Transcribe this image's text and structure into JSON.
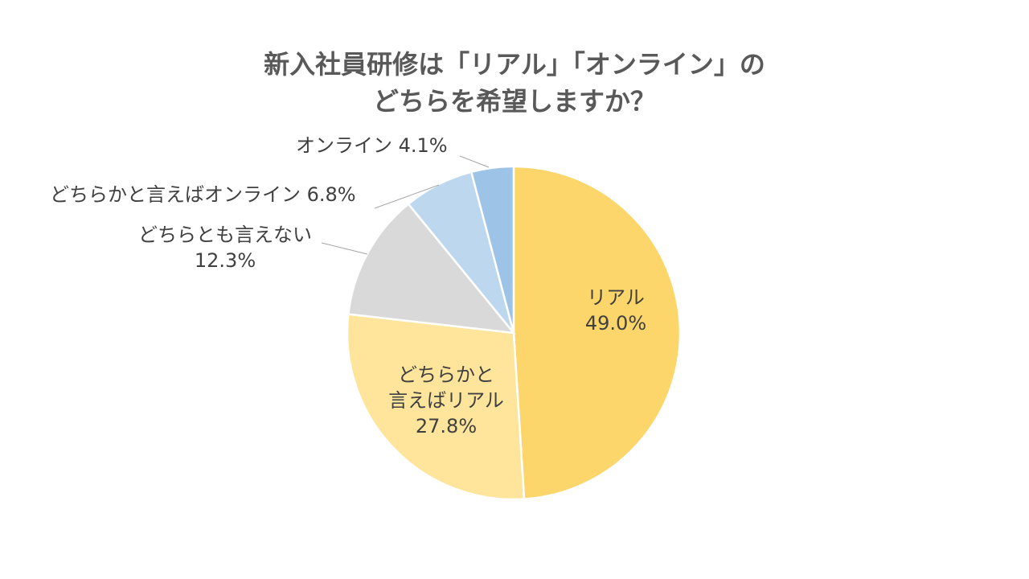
{
  "chart_data": {
    "type": "pie",
    "title_lines": [
      "新入社員研修は「リアル」「オンライン」の",
      "どちらを希望しますか？"
    ],
    "start": "top",
    "direction": "clockwise",
    "slices": [
      {
        "label": "リアル",
        "value": 49.0,
        "value_label": "49.0%",
        "color": "#FCD66A"
      },
      {
        "label": "どちらかと言えばリアル",
        "label_lines": [
          "どちらかと",
          "言えばリアル"
        ],
        "value": 27.8,
        "value_label": "27.8%",
        "color": "#FEE59B"
      },
      {
        "label": "どちらとも言えない",
        "value": 12.3,
        "value_label": "12.3%",
        "color": "#D9D9D9"
      },
      {
        "label": "どちらかと言えばオンライン",
        "value": 6.8,
        "value_label": "6.8%",
        "color": "#BDD7EE"
      },
      {
        "label": "オンライン",
        "value": 4.1,
        "value_label": "4.1%",
        "color": "#9DC3E6"
      }
    ]
  }
}
